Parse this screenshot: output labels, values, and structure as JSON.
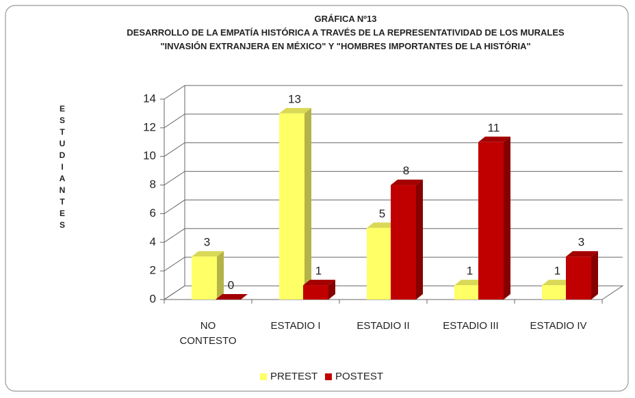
{
  "chart_data": {
    "type": "bar3d",
    "title": "GRÁFICA Nº13",
    "subtitle": "DESARROLLO DE LA EMPATÍA HISTÓRICA A TRAVÉS DE LA REPRESENTATIVIDAD DE LOS MURALES \"INVASIÓN EXTRANJERA EN MÉXICO\" Y \"HOMBRES IMPORTANTES DE LA HISTÓRIA\"",
    "y_label": "ESTUDIANTES",
    "categories": [
      "NO CONTESTO",
      "ESTADIO I",
      "ESTADIO II",
      "ESTADIO III",
      "ESTADIO IV"
    ],
    "series": [
      {
        "name": "PRETEST",
        "color": "#ffff66",
        "values": [
          3,
          13,
          5,
          1,
          1
        ]
      },
      {
        "name": "POSTEST",
        "color": "#c00000",
        "values": [
          0,
          1,
          8,
          11,
          3
        ]
      }
    ],
    "ylim": [
      0,
      14
    ],
    "yticks": [
      0,
      2,
      4,
      6,
      8,
      10,
      12,
      14
    ],
    "grid": true,
    "legend": "bottom"
  }
}
